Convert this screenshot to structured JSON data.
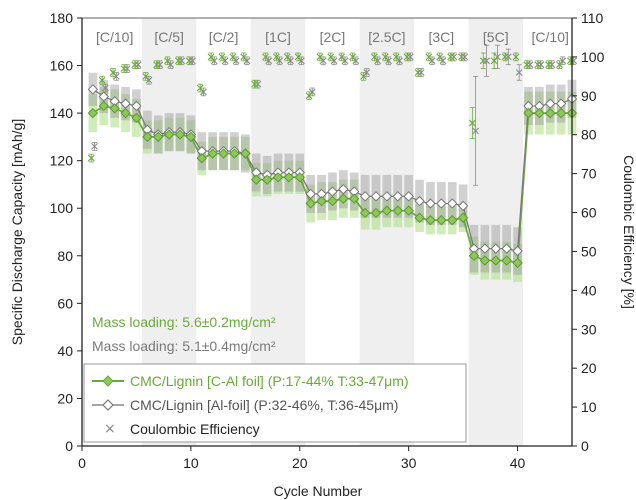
{
  "chart_data": {
    "type": "line",
    "title": "",
    "xlabel": "Cycle Number",
    "ylabel": "Specific Discharge Capacity [mAh/g]",
    "y2label": "Coulombic Efficiency [%]",
    "xlim": [
      0,
      45
    ],
    "ylim": [
      0,
      180
    ],
    "y2lim": [
      0,
      110
    ],
    "xticks": [
      0,
      10,
      20,
      30,
      40
    ],
    "yticks": [
      0,
      20,
      40,
      60,
      80,
      100,
      120,
      140,
      160,
      180
    ],
    "y2ticks": [
      0,
      10,
      20,
      30,
      40,
      50,
      60,
      70,
      80,
      90,
      100,
      110
    ],
    "grid": false,
    "legend_position": "bottom-left",
    "rate_sections": [
      {
        "label": "[C/10]",
        "start": 0.5,
        "end": 5.5,
        "shaded": false
      },
      {
        "label": "[C/5]",
        "start": 5.5,
        "end": 10.5,
        "shaded": true
      },
      {
        "label": "[C/2]",
        "start": 10.5,
        "end": 15.5,
        "shaded": false
      },
      {
        "label": "[1C]",
        "start": 15.5,
        "end": 20.5,
        "shaded": true
      },
      {
        "label": "[2C]",
        "start": 20.5,
        "end": 25.5,
        "shaded": false
      },
      {
        "label": "[2.5C]",
        "start": 25.5,
        "end": 30.5,
        "shaded": true
      },
      {
        "label": "[3C]",
        "start": 30.5,
        "end": 35.5,
        "shaded": false
      },
      {
        "label": "[5C]",
        "start": 35.5,
        "end": 40.5,
        "shaded": true
      },
      {
        "label": "[C/10]",
        "start": 40.5,
        "end": 45.5,
        "shaded": false
      }
    ],
    "annotations": {
      "mass_loading_green": "Mass loading: 5.6±0.2mg/cm²",
      "mass_loading_gray": "Mass loading: 5.1±0.4mg/cm²"
    },
    "x": [
      1,
      2,
      3,
      4,
      5,
      6,
      7,
      8,
      9,
      10,
      11,
      12,
      13,
      14,
      15,
      16,
      17,
      18,
      19,
      20,
      21,
      22,
      23,
      24,
      25,
      26,
      27,
      28,
      29,
      30,
      31,
      32,
      33,
      34,
      35,
      36,
      37,
      38,
      39,
      40,
      41,
      42,
      43,
      44,
      45
    ],
    "series": [
      {
        "name": "CMC/Lignin [C-Al foil] (P:17-44% T:33-47μm)",
        "color": "#6aaa3a",
        "band_color": "#a8dc80",
        "values": [
          140,
          143,
          142,
          140,
          138,
          130,
          130,
          131,
          131,
          130,
          121,
          123,
          123,
          123,
          123,
          112,
          112,
          113,
          113,
          113,
          102,
          103,
          103,
          104,
          104,
          98,
          98,
          99,
          99,
          99,
          96,
          95,
          95,
          95,
          96,
          80,
          78,
          78,
          78,
          77,
          140,
          140,
          140,
          140,
          140
        ],
        "err": [
          8,
          8,
          8,
          8,
          8,
          7,
          7,
          7,
          7,
          7,
          7,
          7,
          7,
          7,
          7,
          7,
          7,
          7,
          7,
          7,
          8,
          8,
          8,
          8,
          8,
          7,
          7,
          7,
          7,
          7,
          6,
          6,
          6,
          6,
          6,
          8,
          8,
          8,
          8,
          8,
          9,
          9,
          9,
          9,
          9
        ]
      },
      {
        "name": "CMC/Lignin [Al-foil] (P:32-46%, T:36-45μm)",
        "color": "#888888",
        "band_color": "#9a9a9a",
        "values": [
          150,
          147,
          145,
          144,
          143,
          133,
          131,
          132,
          132,
          131,
          124,
          124,
          124,
          124,
          123,
          115,
          114,
          115,
          115,
          115,
          106,
          106,
          107,
          108,
          107,
          105,
          105,
          105,
          105,
          105,
          103,
          102,
          102,
          102,
          101,
          83,
          83,
          83,
          83,
          82,
          143,
          143,
          144,
          144,
          146
        ],
        "err": [
          7,
          7,
          7,
          7,
          7,
          8,
          8,
          8,
          8,
          8,
          8,
          8,
          8,
          8,
          8,
          8,
          8,
          8,
          8,
          8,
          8,
          8,
          8,
          8,
          8,
          9,
          9,
          9,
          9,
          9,
          9,
          9,
          9,
          9,
          9,
          10,
          10,
          10,
          10,
          10,
          8,
          8,
          8,
          8,
          8
        ]
      },
      {
        "name": "Coulombic Efficiency",
        "axis": "right",
        "color": "#888888",
        "values_green": [
          74,
          94,
          96,
          97,
          98,
          95,
          98,
          99,
          99,
          99,
          92,
          100,
          100,
          100,
          100,
          93,
          100,
          100,
          100,
          100,
          90,
          100,
          100,
          100,
          100,
          95,
          100,
          100,
          100,
          100,
          96,
          100,
          100,
          100,
          100,
          83,
          99,
          99,
          100,
          100,
          98,
          98,
          98,
          98,
          99
        ],
        "err_green": [
          1,
          1,
          1,
          1,
          1,
          1,
          1,
          1,
          1,
          1,
          1,
          1,
          1,
          1,
          1,
          1,
          1,
          1,
          1,
          1,
          1,
          1,
          1,
          1,
          1,
          1,
          1,
          1,
          1,
          1,
          1,
          1,
          1,
          1,
          1,
          4,
          2,
          2,
          1,
          1,
          1,
          1,
          1,
          1,
          1
        ],
        "values_gray": [
          77,
          92,
          95,
          97,
          98,
          94,
          98,
          98,
          99,
          99,
          91,
          99,
          99,
          99,
          99,
          93,
          99,
          99,
          99,
          99,
          91,
          99,
          99,
          99,
          99,
          96,
          99,
          99,
          99,
          100,
          96,
          99,
          99,
          100,
          100,
          81,
          99,
          100,
          100,
          96,
          98,
          98,
          98,
          99,
          99
        ],
        "err_gray": [
          1,
          1,
          1,
          1,
          1,
          1,
          1,
          1,
          1,
          1,
          1,
          1,
          1,
          1,
          1,
          1,
          1,
          1,
          1,
          1,
          1,
          1,
          1,
          1,
          1,
          1,
          1,
          1,
          1,
          1,
          1,
          1,
          1,
          1,
          1,
          14,
          4,
          3,
          2,
          2,
          1,
          1,
          1,
          1,
          1
        ]
      }
    ]
  }
}
